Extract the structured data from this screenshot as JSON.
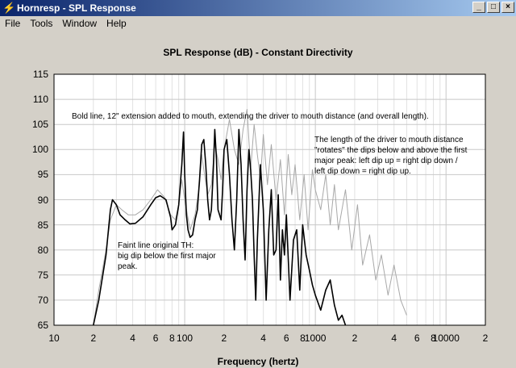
{
  "window": {
    "title": "Hornresp - SPL Response",
    "app_icon": "lightning-icon"
  },
  "menu": [
    "File",
    "Tools",
    "Window",
    "Help"
  ],
  "chart_data": {
    "type": "line",
    "title": "SPL Response (dB) - Constant Directivity",
    "xlabel": "Frequency (hertz)",
    "ylabel": "",
    "xscale": "log",
    "xlim": [
      10,
      20000
    ],
    "ylim": [
      65,
      115
    ],
    "ytick_labels": [
      "115",
      "110",
      "105",
      "100",
      "95",
      "90",
      "85",
      "80",
      "75",
      "70",
      "65"
    ],
    "xtick_labels": [
      {
        "v": 10,
        "t": "10"
      },
      {
        "v": 20,
        "t": "2"
      },
      {
        "v": 40,
        "t": "4"
      },
      {
        "v": 60,
        "t": "6"
      },
      {
        "v": 80,
        "t": "8"
      },
      {
        "v": 100,
        "t": "100"
      },
      {
        "v": 200,
        "t": "2"
      },
      {
        "v": 400,
        "t": "4"
      },
      {
        "v": 600,
        "t": "6"
      },
      {
        "v": 800,
        "t": "8"
      },
      {
        "v": 1000,
        "t": "1000"
      },
      {
        "v": 2000,
        "t": "2"
      },
      {
        "v": 4000,
        "t": "4"
      },
      {
        "v": 6000,
        "t": "6"
      },
      {
        "v": 8000,
        "t": "8"
      },
      {
        "v": 10000,
        "t": "10000"
      },
      {
        "v": 20000,
        "t": "2"
      }
    ],
    "grid": true,
    "series": [
      {
        "color": "#000000",
        "x": [
          20,
          22,
          25,
          27,
          28,
          30,
          32,
          35,
          38,
          42,
          48,
          55,
          60,
          65,
          72,
          78,
          80,
          85,
          90,
          95,
          98,
          100,
          103,
          106,
          110,
          115,
          120,
          125,
          130,
          135,
          140,
          145,
          150,
          155,
          160,
          165,
          170,
          175,
          180,
          190,
          195,
          200,
          210,
          220,
          230,
          240,
          250,
          260,
          270,
          280,
          290,
          300,
          310,
          320,
          330,
          340,
          350,
          360,
          380,
          400,
          420,
          440,
          460,
          480,
          500,
          520,
          540,
          560,
          580,
          600,
          640,
          680,
          720,
          760,
          800,
          850,
          900,
          950,
          1000,
          1100,
          1200,
          1300,
          1400,
          1500,
          1600,
          1700
        ],
        "values": [
          65,
          70,
          79,
          88,
          90,
          89,
          87,
          86,
          85.2,
          85.3,
          86.6,
          89,
          90.4,
          90.8,
          90,
          86.5,
          84,
          85,
          89,
          97,
          103.5,
          95,
          87,
          84,
          82.5,
          83,
          86,
          88,
          94,
          101,
          102,
          97,
          90,
          86,
          88,
          95,
          104,
          98,
          88,
          86,
          92,
          100,
          102,
          95,
          86,
          80,
          90,
          104,
          97,
          86,
          78,
          92,
          100,
          96,
          90,
          79,
          70,
          82,
          97,
          88,
          70,
          84,
          92,
          79,
          80,
          91,
          74,
          84,
          79,
          87,
          70,
          82,
          84,
          72,
          85,
          79,
          76,
          73,
          71,
          68,
          72,
          74,
          69,
          66,
          67,
          65
        ]
      },
      {
        "color": "#a8a8a8",
        "x": [
          20,
          22,
          25,
          27,
          30,
          33,
          37,
          42,
          48,
          55,
          62,
          70,
          78,
          85,
          90,
          95,
          100,
          110,
          120,
          130,
          135,
          140,
          150,
          160,
          170,
          180,
          190,
          200,
          220,
          240,
          260,
          280,
          300,
          320,
          340,
          360,
          380,
          400,
          430,
          460,
          500,
          540,
          580,
          620,
          660,
          700,
          760,
          820,
          880,
          950,
          1000,
          1100,
          1200,
          1300,
          1400,
          1500,
          1700,
          1900,
          2100,
          2300,
          2600,
          2900,
          3200,
          3600,
          4000,
          4500,
          5000
        ],
        "values": [
          65,
          72,
          80,
          86,
          89,
          88,
          87,
          87,
          88,
          90,
          92,
          90.5,
          87,
          86,
          89,
          94,
          90,
          84,
          87,
          93,
          99,
          96,
          91,
          93,
          101,
          98,
          94,
          100,
          106,
          100,
          97,
          104,
          108,
          96,
          105,
          99,
          94,
          103,
          93,
          101,
          90,
          98,
          87,
          99,
          91,
          97,
          86,
          95,
          84,
          96,
          92,
          88,
          95,
          85,
          93,
          84,
          92,
          80,
          89,
          77,
          83,
          74,
          79,
          71,
          77,
          70,
          67
        ]
      }
    ],
    "annotations": [
      "Bold line, 12\" extension added to mouth, extending the driver to mouth distance (and overall length).",
      "The length of the driver to mouth distance\n\"rotates\" the dips below and above the first\nmajor peak: left dip up = right dip down /\nleft dip down = right dip up.",
      "Faint line original TH:\nbig dip below the first major\npeak."
    ]
  }
}
